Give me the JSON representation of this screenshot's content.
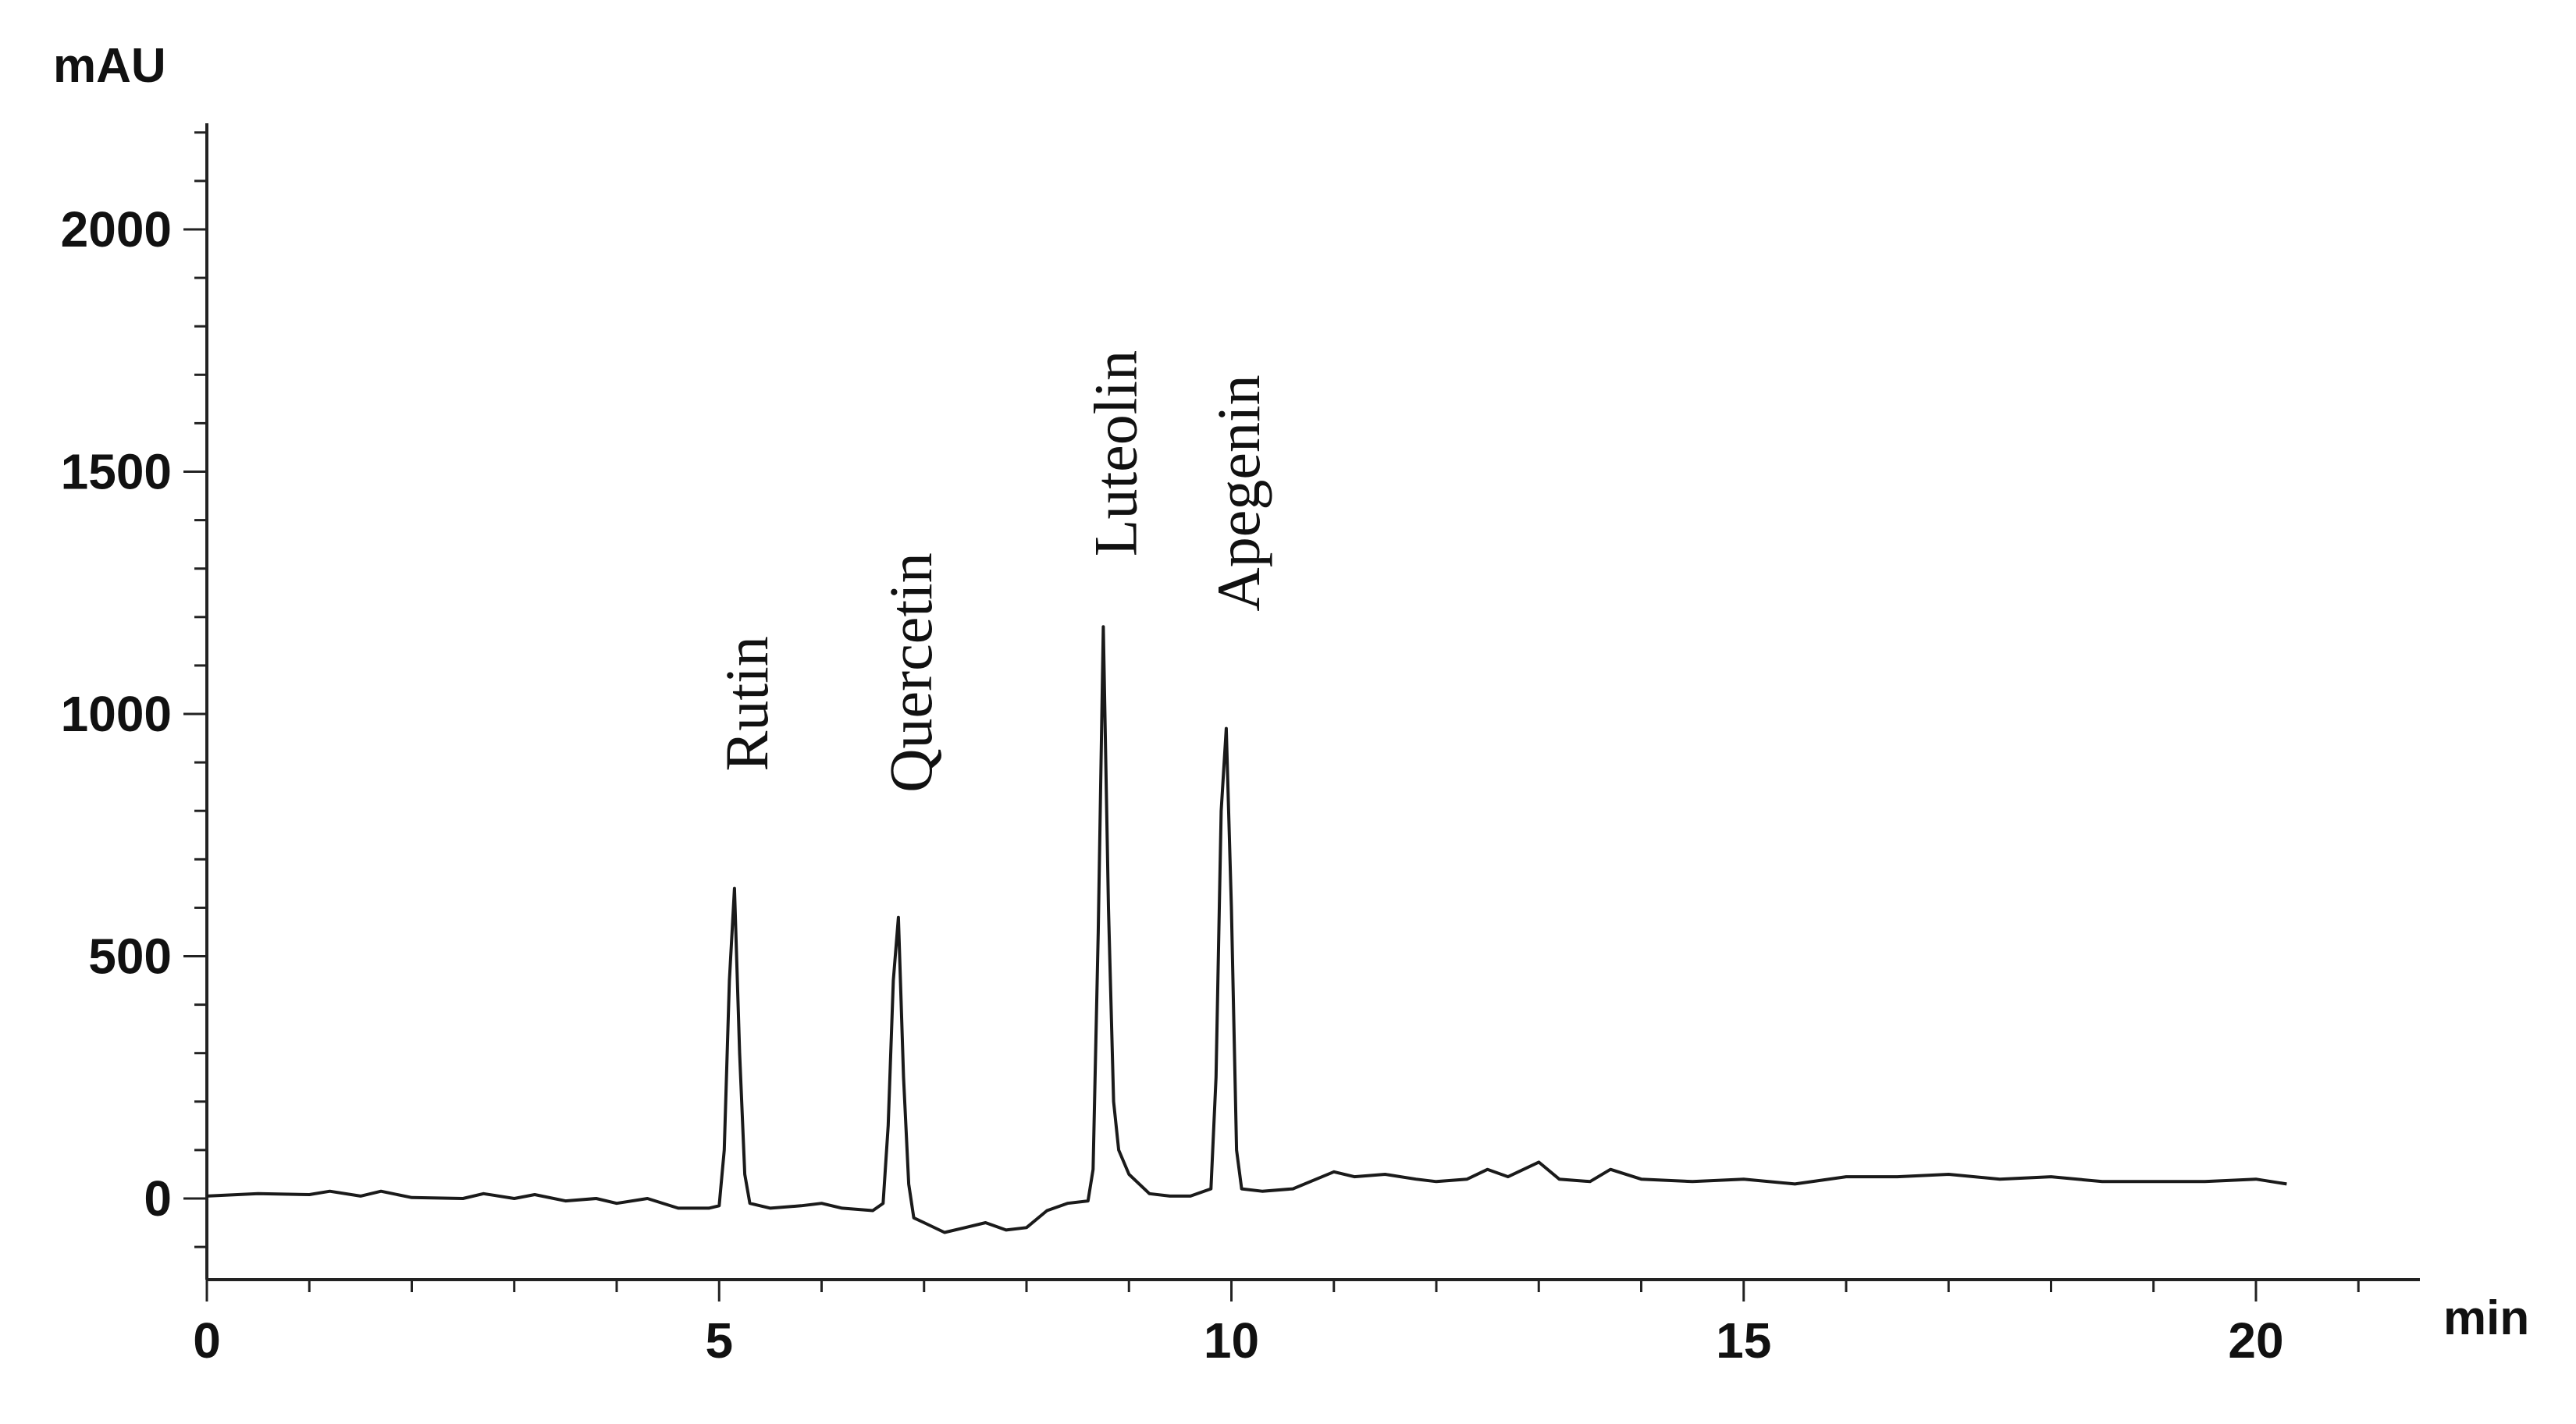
{
  "chart_data": {
    "type": "line",
    "title": "",
    "xlabel": "min",
    "ylabel": "mAU",
    "xlim": [
      0,
      21.5
    ],
    "ylim": [
      -170,
      2200
    ],
    "x_ticks": [
      0,
      5,
      10,
      15,
      20
    ],
    "x_tick_labels": [
      "0",
      "5",
      "10",
      "15",
      "20"
    ],
    "y_ticks": [
      0,
      500,
      1000,
      1500,
      2000
    ],
    "y_tick_labels": [
      "0",
      "500",
      "1000",
      "1500",
      "2000"
    ],
    "grid": false,
    "legend": "none",
    "line_color": "#1a1a1a",
    "peaks": [
      {
        "label": "Rutin",
        "x": 5.15,
        "y": 640
      },
      {
        "label": "Quercetin",
        "x": 6.75,
        "y": 580
      },
      {
        "label": "Luteolin",
        "x": 8.75,
        "y": 1180
      },
      {
        "label": "Apegenin",
        "x": 9.95,
        "y": 970
      }
    ],
    "series": [
      {
        "x": [
          0,
          0.5,
          1.0,
          1.2,
          1.5,
          1.7,
          2.0,
          2.5,
          2.7,
          3.0,
          3.2,
          3.5,
          3.8,
          4.0,
          4.3,
          4.6,
          4.9,
          5.0,
          5.05,
          5.1,
          5.15,
          5.2,
          5.25,
          5.3,
          5.5,
          5.8,
          6.0,
          6.2,
          6.5,
          6.6,
          6.65,
          6.7,
          6.75,
          6.8,
          6.85,
          6.9,
          7.0,
          7.2,
          7.4,
          7.6,
          7.8,
          8.0,
          8.2,
          8.4,
          8.6,
          8.65,
          8.7,
          8.75,
          8.8,
          8.85,
          8.9,
          9.0,
          9.2,
          9.4,
          9.6,
          9.8,
          9.85,
          9.9,
          9.95,
          10.0,
          10.05,
          10.1,
          10.3,
          10.6,
          11.0,
          11.2,
          11.5,
          11.8,
          12.0,
          12.3,
          12.5,
          12.7,
          13.0,
          13.2,
          13.5,
          13.7,
          14.0,
          14.5,
          15.0,
          15.5,
          16.0,
          16.5,
          17.0,
          17.5,
          18.0,
          18.5,
          19.0,
          19.5,
          20.0,
          20.3
        ],
        "y": [
          5,
          10,
          8,
          15,
          5,
          15,
          2,
          0,
          10,
          0,
          8,
          -5,
          0,
          -10,
          0,
          -20,
          -20,
          -15,
          100,
          450,
          640,
          300,
          50,
          -10,
          -20,
          -15,
          -10,
          -20,
          -25,
          -10,
          150,
          450,
          580,
          250,
          30,
          -40,
          -50,
          -70,
          -60,
          -50,
          -65,
          -60,
          -25,
          -10,
          -5,
          60,
          550,
          1180,
          600,
          200,
          100,
          50,
          10,
          5,
          5,
          20,
          250,
          800,
          970,
          600,
          100,
          20,
          15,
          20,
          55,
          45,
          50,
          40,
          35,
          40,
          60,
          45,
          75,
          40,
          35,
          60,
          40,
          35,
          40,
          30,
          45,
          45,
          50,
          40,
          45,
          35,
          35,
          35,
          40,
          30
        ]
      }
    ]
  }
}
